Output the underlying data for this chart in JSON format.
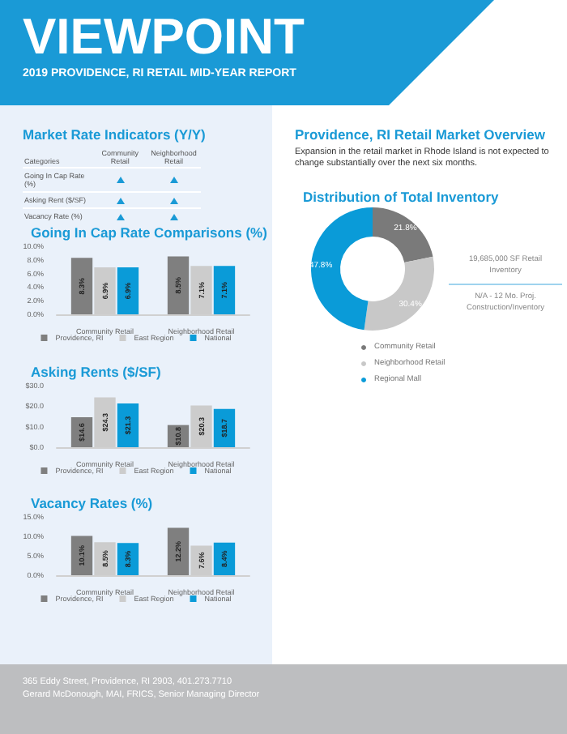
{
  "chart_data": [
    {
      "type": "other",
      "title": "VIEWPOINT",
      "subtitle": "2019 PROVIDENCE, RI RETAIL MID-YEAR REPORT"
    },
    {
      "type": "other",
      "title": "Market Rate Indicators (Y/Y)",
      "annotations": [
        "Categories"
      ],
      "categories": [
        "Community Retail",
        "Neighborhood Retail"
      ],
      "y_categories": [
        "Going In Cap Rate (%)",
        "Asking Rent ($/SF)",
        "Vacancy Rate (%)"
      ]
    },
    {
      "type": "bar",
      "title": "Going In Cap Rate Comparisons (%)",
      "categories": [
        "Community Retail",
        "Neighborhood Retail"
      ],
      "series": [
        {
          "name": "Providence, RI",
          "color": "#7f7f7f",
          "values": [
            8.3,
            8.5
          ],
          "value_labels": [
            "8.3%",
            "8.5%"
          ]
        },
        {
          "name": "East Region",
          "color": "#cccccc",
          "values": [
            6.9,
            7.1
          ],
          "value_labels": [
            "6.9%",
            "7.1%"
          ]
        },
        {
          "name": "National",
          "color": "#0a9bd8",
          "values": [
            6.9,
            7.1
          ],
          "value_labels": [
            "6.9%",
            "7.1%"
          ]
        }
      ],
      "ylim": [
        0,
        10
      ],
      "yticks": [
        {
          "value": 0,
          "label": "0.0%"
        },
        {
          "value": 2,
          "label": "2.0%"
        },
        {
          "value": 4,
          "label": "4.0%"
        },
        {
          "value": 6,
          "label": "6.0%"
        },
        {
          "value": 8,
          "label": "8.0%"
        },
        {
          "value": 10,
          "label": "10.0%"
        }
      ],
      "legend": "bottom",
      "grid": false
    },
    {
      "type": "bar",
      "title": "Asking Rents ($/SF)",
      "categories": [
        "Community Retail",
        "Neighborhood Retail"
      ],
      "series": [
        {
          "name": "Providence, RI",
          "color": "#7f7f7f",
          "values": [
            14.6,
            10.8
          ],
          "value_labels": [
            "$14.6",
            "$10.8"
          ]
        },
        {
          "name": "East Region",
          "color": "#cccccc",
          "values": [
            24.3,
            20.3
          ],
          "value_labels": [
            "$24.3",
            "$20.3"
          ]
        },
        {
          "name": "National",
          "color": "#0a9bd8",
          "values": [
            21.3,
            18.7
          ],
          "value_labels": [
            "$21.3",
            "$18.7"
          ]
        }
      ],
      "ylim": [
        0,
        30
      ],
      "yticks": [
        {
          "value": 0,
          "label": "$0.0"
        },
        {
          "value": 10,
          "label": "$10.0"
        },
        {
          "value": 20,
          "label": "$20.0"
        },
        {
          "value": 30,
          "label": "$30.0"
        }
      ],
      "legend": "bottom",
      "grid": false
    },
    {
      "type": "bar",
      "title": "Vacancy Rates (%)",
      "categories": [
        "Community Retail",
        "Neighborhood Retail"
      ],
      "series": [
        {
          "name": "Providence, RI",
          "color": "#7f7f7f",
          "values": [
            10.1,
            12.2
          ],
          "value_labels": [
            "10.1%",
            "12.2%"
          ]
        },
        {
          "name": "East Region",
          "color": "#cccccc",
          "values": [
            8.5,
            7.6
          ],
          "value_labels": [
            "8.5%",
            "7.6%"
          ]
        },
        {
          "name": "National",
          "color": "#0a9bd8",
          "values": [
            8.3,
            8.4
          ],
          "value_labels": [
            "8.3%",
            "8.4%"
          ]
        }
      ],
      "ylim": [
        0,
        15
      ],
      "yticks": [
        {
          "value": 0,
          "label": "0.0%"
        },
        {
          "value": 5,
          "label": "5.0%"
        },
        {
          "value": 10,
          "label": "10.0%"
        },
        {
          "value": 15,
          "label": "15.0%"
        }
      ],
      "legend": "bottom",
      "grid": false
    },
    {
      "type": "other",
      "title": "Providence, RI Retail Market Overview",
      "subtitle": "Expansion in the retail market in Rhode Island is not expected to change substantially over the next six months."
    },
    {
      "type": "donut",
      "title": "Distribution of Total Inventory",
      "categories": [
        "Community Retail",
        "Neighborhood Retail",
        "Regional Mall"
      ],
      "values": [
        21.8,
        30.4,
        47.8
      ],
      "colors": [
        "#7a7a7a",
        "#c8c8c8",
        "#0a9bd8"
      ],
      "value_labels": [
        "21.8%",
        "30.4%",
        "47.8%"
      ],
      "legend": "bottom",
      "annotations": [
        "19,685,000 SF Retail Inventory",
        "N/A - 12 Mo. Proj. Construction/Inventory"
      ]
    },
    {
      "type": "other",
      "annotations": [
        "365 Eddy Street, Providence, RI 2903, 401.273.7710",
        "Gerard McDonough, MAI, FRICS, Senior Managing Director"
      ]
    }
  ]
}
